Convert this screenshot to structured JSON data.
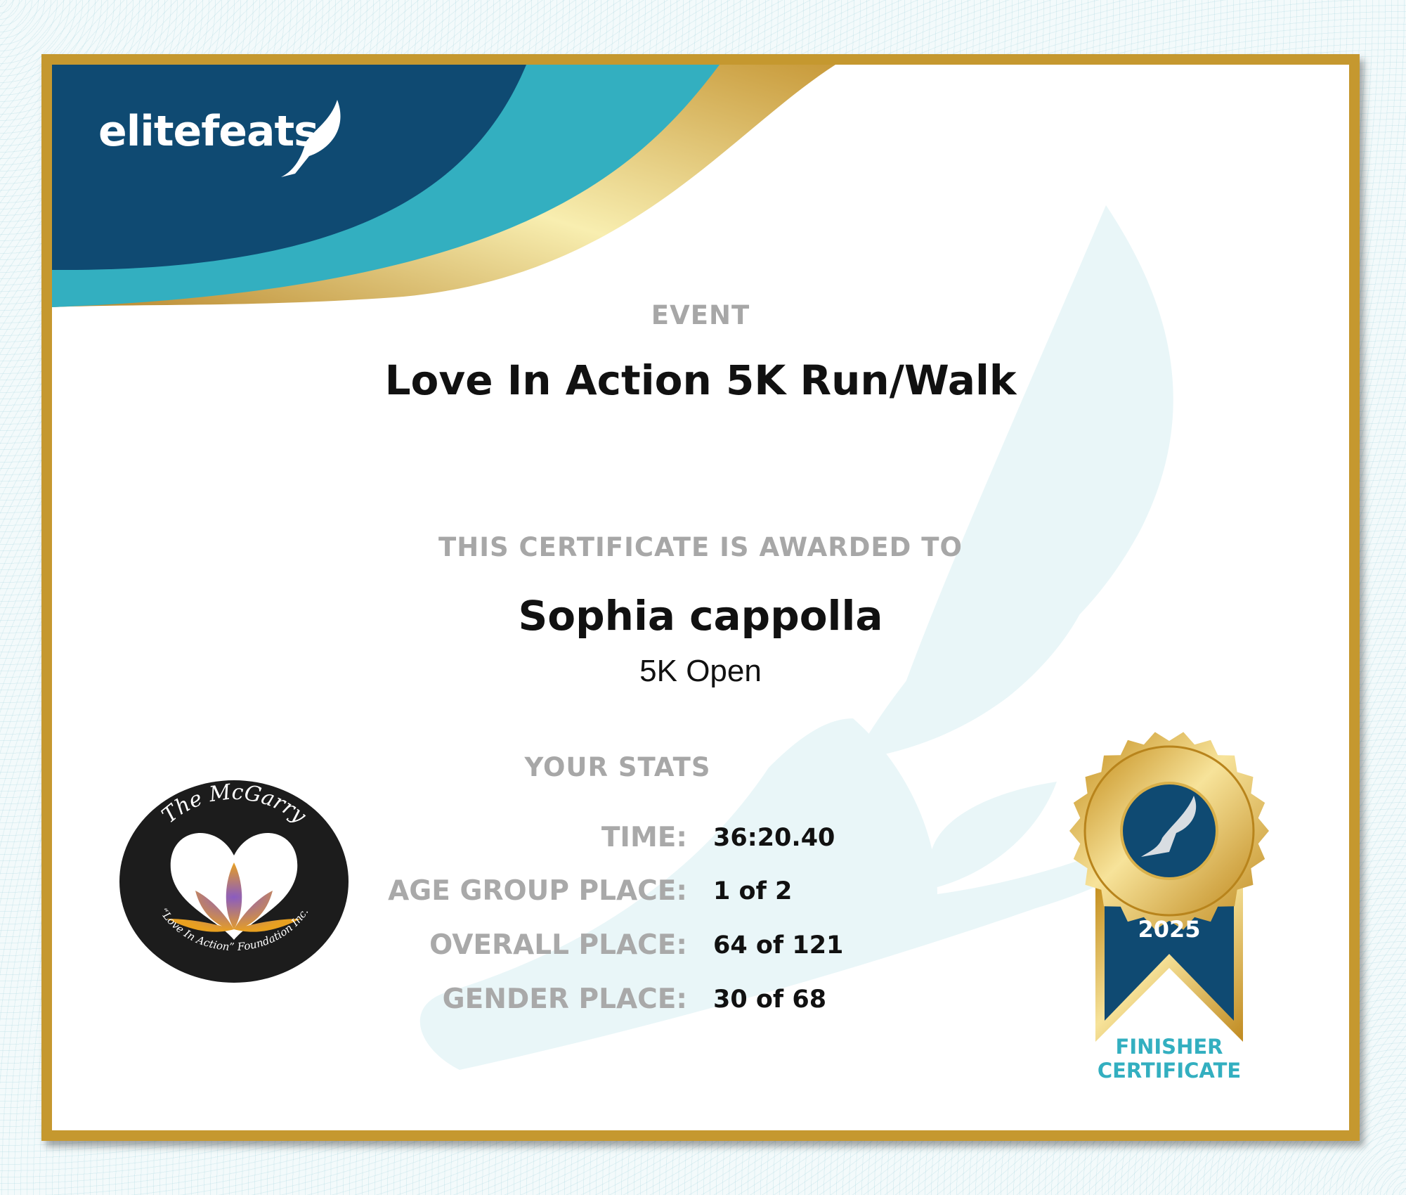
{
  "brand": {
    "logo_text": "elitefeats",
    "colors": {
      "navy": "#0f4a72",
      "teal": "#33afc0",
      "gold": "#c5982f",
      "watermark": "#e9f6f8"
    }
  },
  "event": {
    "label": "EVENT",
    "name": "Love In Action 5K Run/Walk"
  },
  "award": {
    "label": "THIS CERTIFICATE IS AWARDED TO",
    "name": "Sophia cappolla",
    "division": "5K Open"
  },
  "stats": {
    "label": "YOUR STATS",
    "rows": [
      {
        "label": "TIME:",
        "value": "36:20.40"
      },
      {
        "label": "AGE GROUP PLACE:",
        "value": "1 of 2"
      },
      {
        "label": "OVERALL PLACE:",
        "value": "64 of 121"
      },
      {
        "label": "GENDER PLACE:",
        "value": "30 of 68"
      }
    ]
  },
  "sponsor_logo": {
    "top_text": "The McGarry",
    "bottom_text": "“Love In Action” Foundation Inc.",
    "icon": "lotus-heart-icon"
  },
  "badge": {
    "year": "2025",
    "line1": "FINISHER",
    "line2": "CERTIFICATE",
    "icon": "winged-shoe-icon"
  }
}
